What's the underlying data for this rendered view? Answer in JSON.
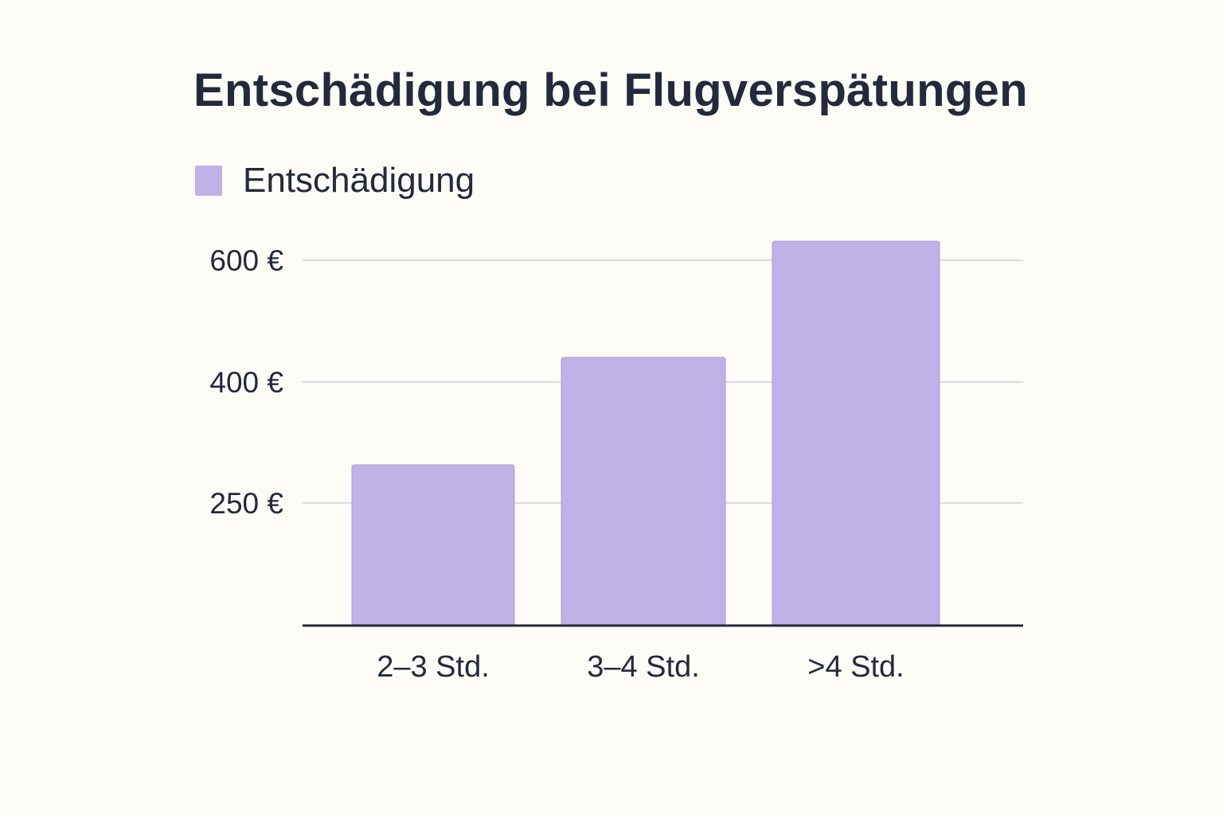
{
  "chart_data": {
    "type": "bar",
    "title": "Entschädigung bei Flugverspätungen",
    "legend": [
      "Entschädigung"
    ],
    "legend_position": "top-left",
    "categories": [
      "2–3 Std.",
      "3–4 Std.",
      ">4 Std."
    ],
    "series": [
      {
        "name": "Entschädigung",
        "values": [
          250,
          400,
          600
        ]
      }
    ],
    "y_ticks": [
      {
        "value": 250,
        "label": "250 €"
      },
      {
        "value": 400,
        "label": "400 €"
      },
      {
        "value": 600,
        "label": "600 €"
      }
    ],
    "xlabel": "",
    "ylabel": "",
    "grid": true,
    "colors": {
      "bar": "#c0b1e6",
      "bar_stroke": "#ad9bdc",
      "grid": "#dcdbe6",
      "axis": "#232a3b",
      "text": "#232a3b",
      "background": "#fdfcf7"
    }
  }
}
